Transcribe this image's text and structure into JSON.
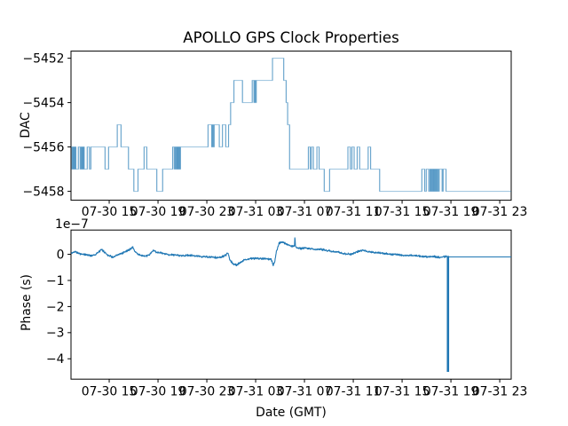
{
  "figure_title": "APOLLO GPS Clock Properties",
  "chart_data": [
    {
      "type": "line",
      "name": "dac-subplot",
      "title": "APOLLO GPS Clock Properties",
      "ylabel": "DAC",
      "line_color": "#1f77b4",
      "line_alpha": 0.4,
      "draw_style": "steps-post",
      "grid": false,
      "legend": "none",
      "xlim_hours": [
        -0.13,
        35.94
      ],
      "ylim": [
        -5458.4,
        -5451.68
      ],
      "yticks": [
        {
          "v": -5452,
          "label": "−5452"
        },
        {
          "v": -5454,
          "label": "−5454"
        },
        {
          "v": -5456,
          "label": "−5456"
        },
        {
          "v": -5458,
          "label": "−5458"
        }
      ],
      "xticks": [
        {
          "t": 3,
          "label": "07-30 15"
        },
        {
          "t": 7,
          "label": "07-30 19"
        },
        {
          "t": 11,
          "label": "07-30 23"
        },
        {
          "t": 15,
          "label": "07-31 03"
        },
        {
          "t": 19,
          "label": "07-31 07"
        },
        {
          "t": 23,
          "label": "07-31 11"
        },
        {
          "t": 27,
          "label": "07-31 15"
        },
        {
          "t": 31,
          "label": "07-31 19"
        },
        {
          "t": 35,
          "label": "07-31 23"
        }
      ],
      "steps": [
        [
          -0.13,
          -5456
        ],
        [
          -0.04,
          -5457
        ],
        [
          0.02,
          -5456
        ],
        [
          0.07,
          -5457
        ],
        [
          0.12,
          -5456
        ],
        [
          0.17,
          -5457
        ],
        [
          0.22,
          -5456
        ],
        [
          0.27,
          -5457
        ],
        [
          0.47,
          -5456
        ],
        [
          0.62,
          -5457
        ],
        [
          0.7,
          -5456
        ],
        [
          0.75,
          -5457
        ],
        [
          0.8,
          -5456
        ],
        [
          0.85,
          -5457
        ],
        [
          0.9,
          -5456
        ],
        [
          0.95,
          -5457
        ],
        [
          1.2,
          -5456
        ],
        [
          1.38,
          -5457
        ],
        [
          1.5,
          -5456
        ],
        [
          2.66,
          -5457
        ],
        [
          2.95,
          -5456
        ],
        [
          3.66,
          -5455
        ],
        [
          3.97,
          -5456
        ],
        [
          4.58,
          -5457
        ],
        [
          5.02,
          -5458
        ],
        [
          5.36,
          -5457
        ],
        [
          5.86,
          -5456
        ],
        [
          6.08,
          -5457
        ],
        [
          6.9,
          -5458
        ],
        [
          7.38,
          -5457
        ],
        [
          8.2,
          -5456
        ],
        [
          8.33,
          -5457
        ],
        [
          8.41,
          -5456
        ],
        [
          8.47,
          -5457
        ],
        [
          8.53,
          -5456
        ],
        [
          8.58,
          -5457
        ],
        [
          8.63,
          -5456
        ],
        [
          8.68,
          -5457
        ],
        [
          8.73,
          -5456
        ],
        [
          8.78,
          -5457
        ],
        [
          8.84,
          -5456
        ],
        [
          11.1,
          -5455
        ],
        [
          11.4,
          -5456
        ],
        [
          11.47,
          -5455
        ],
        [
          11.53,
          -5456
        ],
        [
          11.6,
          -5455
        ],
        [
          12.02,
          -5456
        ],
        [
          12.28,
          -5455
        ],
        [
          12.55,
          -5456
        ],
        [
          12.78,
          -5455
        ],
        [
          12.95,
          -5454
        ],
        [
          13.22,
          -5453
        ],
        [
          13.92,
          -5454
        ],
        [
          14.72,
          -5453
        ],
        [
          14.86,
          -5454
        ],
        [
          14.93,
          -5453
        ],
        [
          14.99,
          -5454
        ],
        [
          15.05,
          -5453
        ],
        [
          16.38,
          -5452
        ],
        [
          17.3,
          -5453
        ],
        [
          17.5,
          -5454
        ],
        [
          17.62,
          -5455
        ],
        [
          17.78,
          -5457
        ],
        [
          19.32,
          -5456
        ],
        [
          19.47,
          -5457
        ],
        [
          19.57,
          -5456
        ],
        [
          19.73,
          -5457
        ],
        [
          20.02,
          -5456
        ],
        [
          20.2,
          -5457
        ],
        [
          20.62,
          -5458
        ],
        [
          21.06,
          -5457
        ],
        [
          22.56,
          -5456
        ],
        [
          22.76,
          -5457
        ],
        [
          22.89,
          -5456
        ],
        [
          23.07,
          -5457
        ],
        [
          23.32,
          -5456
        ],
        [
          23.52,
          -5457
        ],
        [
          24.22,
          -5456
        ],
        [
          24.42,
          -5457
        ],
        [
          25.16,
          -5458
        ],
        [
          28.62,
          -5457
        ],
        [
          28.85,
          -5458
        ],
        [
          28.98,
          -5457
        ],
        [
          29.18,
          -5458
        ],
        [
          29.28,
          -5457
        ],
        [
          29.34,
          -5458
        ],
        [
          29.4,
          -5457
        ],
        [
          29.46,
          -5458
        ],
        [
          29.52,
          -5457
        ],
        [
          29.58,
          -5458
        ],
        [
          29.64,
          -5457
        ],
        [
          29.7,
          -5458
        ],
        [
          29.76,
          -5457
        ],
        [
          29.82,
          -5458
        ],
        [
          29.88,
          -5457
        ],
        [
          29.96,
          -5458
        ],
        [
          30.04,
          -5457
        ],
        [
          30.28,
          -5458
        ],
        [
          30.36,
          -5457
        ],
        [
          30.6,
          -5458
        ],
        [
          35.94,
          -5458
        ]
      ]
    },
    {
      "type": "line",
      "name": "phase-subplot",
      "ylabel": "Phase (s)",
      "xlabel": "Date (GMT)",
      "offset_label": "1e−7",
      "line_color": "#1f77b4",
      "grid": false,
      "legend": "none",
      "xlim_hours": [
        -0.13,
        35.94
      ],
      "ylim_1e7": [
        -4.78,
        0.93
      ],
      "yticks": [
        {
          "v": 0,
          "label": "0"
        },
        {
          "v": -1,
          "label": "−1"
        },
        {
          "v": -2,
          "label": "−2"
        },
        {
          "v": -3,
          "label": "−3"
        },
        {
          "v": -4,
          "label": "−4"
        }
      ],
      "xticks": [
        {
          "t": 3,
          "label": "07-30 15"
        },
        {
          "t": 7,
          "label": "07-30 19"
        },
        {
          "t": 11,
          "label": "07-30 23"
        },
        {
          "t": 15,
          "label": "07-31 03"
        },
        {
          "t": 19,
          "label": "07-31 07"
        },
        {
          "t": 23,
          "label": "07-31 11"
        },
        {
          "t": 27,
          "label": "07-31 15"
        },
        {
          "t": 31,
          "label": "07-31 19"
        },
        {
          "t": 35,
          "label": "07-31 23"
        }
      ],
      "envelope_1e7": [
        [
          -0.1,
          0.03
        ],
        [
          0.21,
          0.12
        ],
        [
          0.45,
          0.05
        ],
        [
          0.74,
          0.0
        ],
        [
          1.18,
          -0.02
        ],
        [
          1.54,
          -0.05
        ],
        [
          1.9,
          0.0
        ],
        [
          2.39,
          0.18
        ],
        [
          2.63,
          0.08
        ],
        [
          2.87,
          -0.02
        ],
        [
          3.35,
          -0.12
        ],
        [
          3.59,
          -0.05
        ],
        [
          3.93,
          0.02
        ],
        [
          4.3,
          0.1
        ],
        [
          4.66,
          0.18
        ],
        [
          4.93,
          0.28
        ],
        [
          5.09,
          0.12
        ],
        [
          5.38,
          0.0
        ],
        [
          5.67,
          -0.05
        ],
        [
          6.02,
          -0.08
        ],
        [
          6.33,
          0.0
        ],
        [
          6.62,
          0.15
        ],
        [
          6.91,
          0.08
        ],
        [
          7.2,
          0.05
        ],
        [
          7.71,
          0.0
        ],
        [
          8.21,
          -0.02
        ],
        [
          8.94,
          -0.05
        ],
        [
          9.67,
          -0.04
        ],
        [
          10.39,
          -0.08
        ],
        [
          11.12,
          -0.1
        ],
        [
          11.84,
          -0.13
        ],
        [
          12.21,
          -0.1
        ],
        [
          12.57,
          -0.03
        ],
        [
          12.71,
          0.06
        ],
        [
          12.86,
          -0.18
        ],
        [
          13.15,
          -0.38
        ],
        [
          13.44,
          -0.4
        ],
        [
          13.73,
          -0.32
        ],
        [
          14.02,
          -0.22
        ],
        [
          14.38,
          -0.18
        ],
        [
          14.75,
          -0.16
        ],
        [
          15.25,
          -0.15
        ],
        [
          15.83,
          -0.17
        ],
        [
          16.27,
          -0.2
        ],
        [
          16.45,
          -0.42
        ],
        [
          16.56,
          -0.28
        ],
        [
          16.7,
          0.1
        ],
        [
          16.92,
          0.42
        ],
        [
          17.14,
          0.48
        ],
        [
          17.43,
          0.42
        ],
        [
          17.72,
          0.35
        ],
        [
          18.01,
          0.3
        ],
        [
          18.18,
          0.3
        ],
        [
          18.22,
          0.72
        ],
        [
          18.26,
          0.3
        ],
        [
          18.45,
          0.25
        ],
        [
          18.74,
          0.22
        ],
        [
          19.1,
          0.25
        ],
        [
          19.46,
          0.22
        ],
        [
          19.9,
          0.18
        ],
        [
          20.33,
          0.2
        ],
        [
          20.77,
          0.15
        ],
        [
          21.2,
          0.12
        ],
        [
          21.64,
          0.1
        ],
        [
          22.0,
          0.05
        ],
        [
          22.37,
          0.02
        ],
        [
          22.73,
          0.0
        ],
        [
          23.09,
          0.05
        ],
        [
          23.45,
          0.12
        ],
        [
          23.82,
          0.15
        ],
        [
          24.18,
          0.12
        ],
        [
          24.54,
          0.08
        ],
        [
          25.12,
          0.05
        ],
        [
          25.7,
          0.02
        ],
        [
          26.28,
          0.0
        ],
        [
          26.86,
          -0.02
        ],
        [
          27.44,
          -0.05
        ],
        [
          28.02,
          -0.04
        ],
        [
          28.6,
          -0.08
        ],
        [
          29.18,
          -0.1
        ],
        [
          29.62,
          -0.08
        ],
        [
          30.05,
          -0.12
        ],
        [
          30.34,
          -0.1
        ],
        [
          30.56,
          -0.08
        ],
        [
          30.68,
          -0.1
        ]
      ],
      "noise_amplitude_1e7": 0.045,
      "spike": {
        "t": 30.76,
        "top_1e7": -0.06,
        "bottom_1e7": -4.5
      },
      "tail": {
        "t_start": 30.8,
        "t_end": 35.94,
        "value_1e7": -0.1
      }
    }
  ]
}
